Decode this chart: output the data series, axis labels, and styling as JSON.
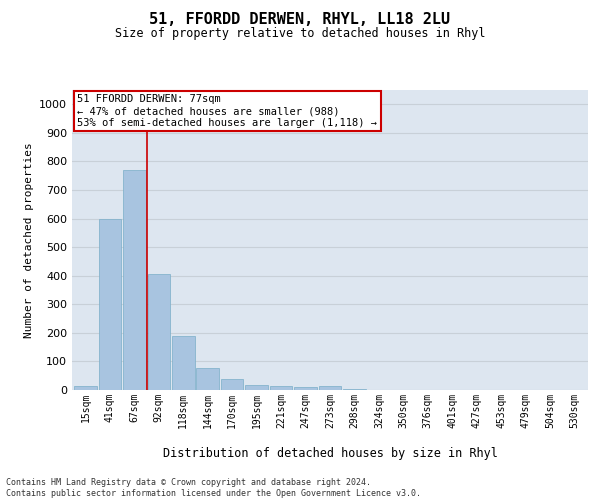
{
  "title1": "51, FFORDD DERWEN, RHYL, LL18 2LU",
  "title2": "Size of property relative to detached houses in Rhyl",
  "xlabel": "Distribution of detached houses by size in Rhyl",
  "ylabel": "Number of detached properties",
  "bar_labels": [
    "15sqm",
    "41sqm",
    "67sqm",
    "92sqm",
    "118sqm",
    "144sqm",
    "170sqm",
    "195sqm",
    "221sqm",
    "247sqm",
    "273sqm",
    "298sqm",
    "324sqm",
    "350sqm",
    "376sqm",
    "401sqm",
    "427sqm",
    "453sqm",
    "479sqm",
    "504sqm",
    "530sqm"
  ],
  "bar_values": [
    15,
    600,
    770,
    405,
    190,
    77,
    38,
    18,
    15,
    10,
    13,
    5,
    0,
    0,
    0,
    0,
    0,
    0,
    0,
    0,
    0
  ],
  "bar_color": "#a8c4e0",
  "bar_edge_color": "#7aaec8",
  "annotation_text_line1": "51 FFORDD DERWEN: 77sqm",
  "annotation_text_line2": "← 47% of detached houses are smaller (988)",
  "annotation_text_line3": "53% of semi-detached houses are larger (1,118) →",
  "annotation_box_color": "#ffffff",
  "annotation_box_edge": "#cc0000",
  "vline_color": "#cc0000",
  "vline_x": 2.5,
  "ylim": [
    0,
    1050
  ],
  "yticks": [
    0,
    100,
    200,
    300,
    400,
    500,
    600,
    700,
    800,
    900,
    1000
  ],
  "grid_color": "#c8d0d8",
  "bg_color": "#dde6f0",
  "footer_line1": "Contains HM Land Registry data © Crown copyright and database right 2024.",
  "footer_line2": "Contains public sector information licensed under the Open Government Licence v3.0."
}
